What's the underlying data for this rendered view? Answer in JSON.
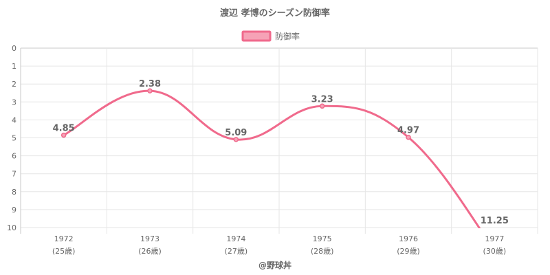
{
  "chart_data": {
    "type": "line",
    "title": "渡辺 孝博のシーズン防御率",
    "categories": [
      "1972",
      "1973",
      "1974",
      "1975",
      "1976",
      "1977"
    ],
    "category_sublabels": [
      "(25歳)",
      "(26歳)",
      "(27歳)",
      "(28歳)",
      "(29歳)",
      "(30歳)"
    ],
    "series": [
      {
        "name": "防御率",
        "values": [
          4.85,
          2.38,
          5.09,
          3.23,
          4.97,
          11.25
        ]
      }
    ],
    "data_labels": [
      "4.85",
      "2.38",
      "5.09",
      "3.23",
      "4.97",
      "11.25"
    ],
    "ylim": [
      0,
      10
    ],
    "y_reversed": true,
    "y_ticks": [
      0,
      1,
      2,
      3,
      4,
      5,
      6,
      7,
      8,
      9,
      10
    ],
    "grid": true,
    "legend_position": "top",
    "color": "#f06a8c",
    "legend_fill": "#f6a2b6"
  },
  "credit": "@野球丼"
}
